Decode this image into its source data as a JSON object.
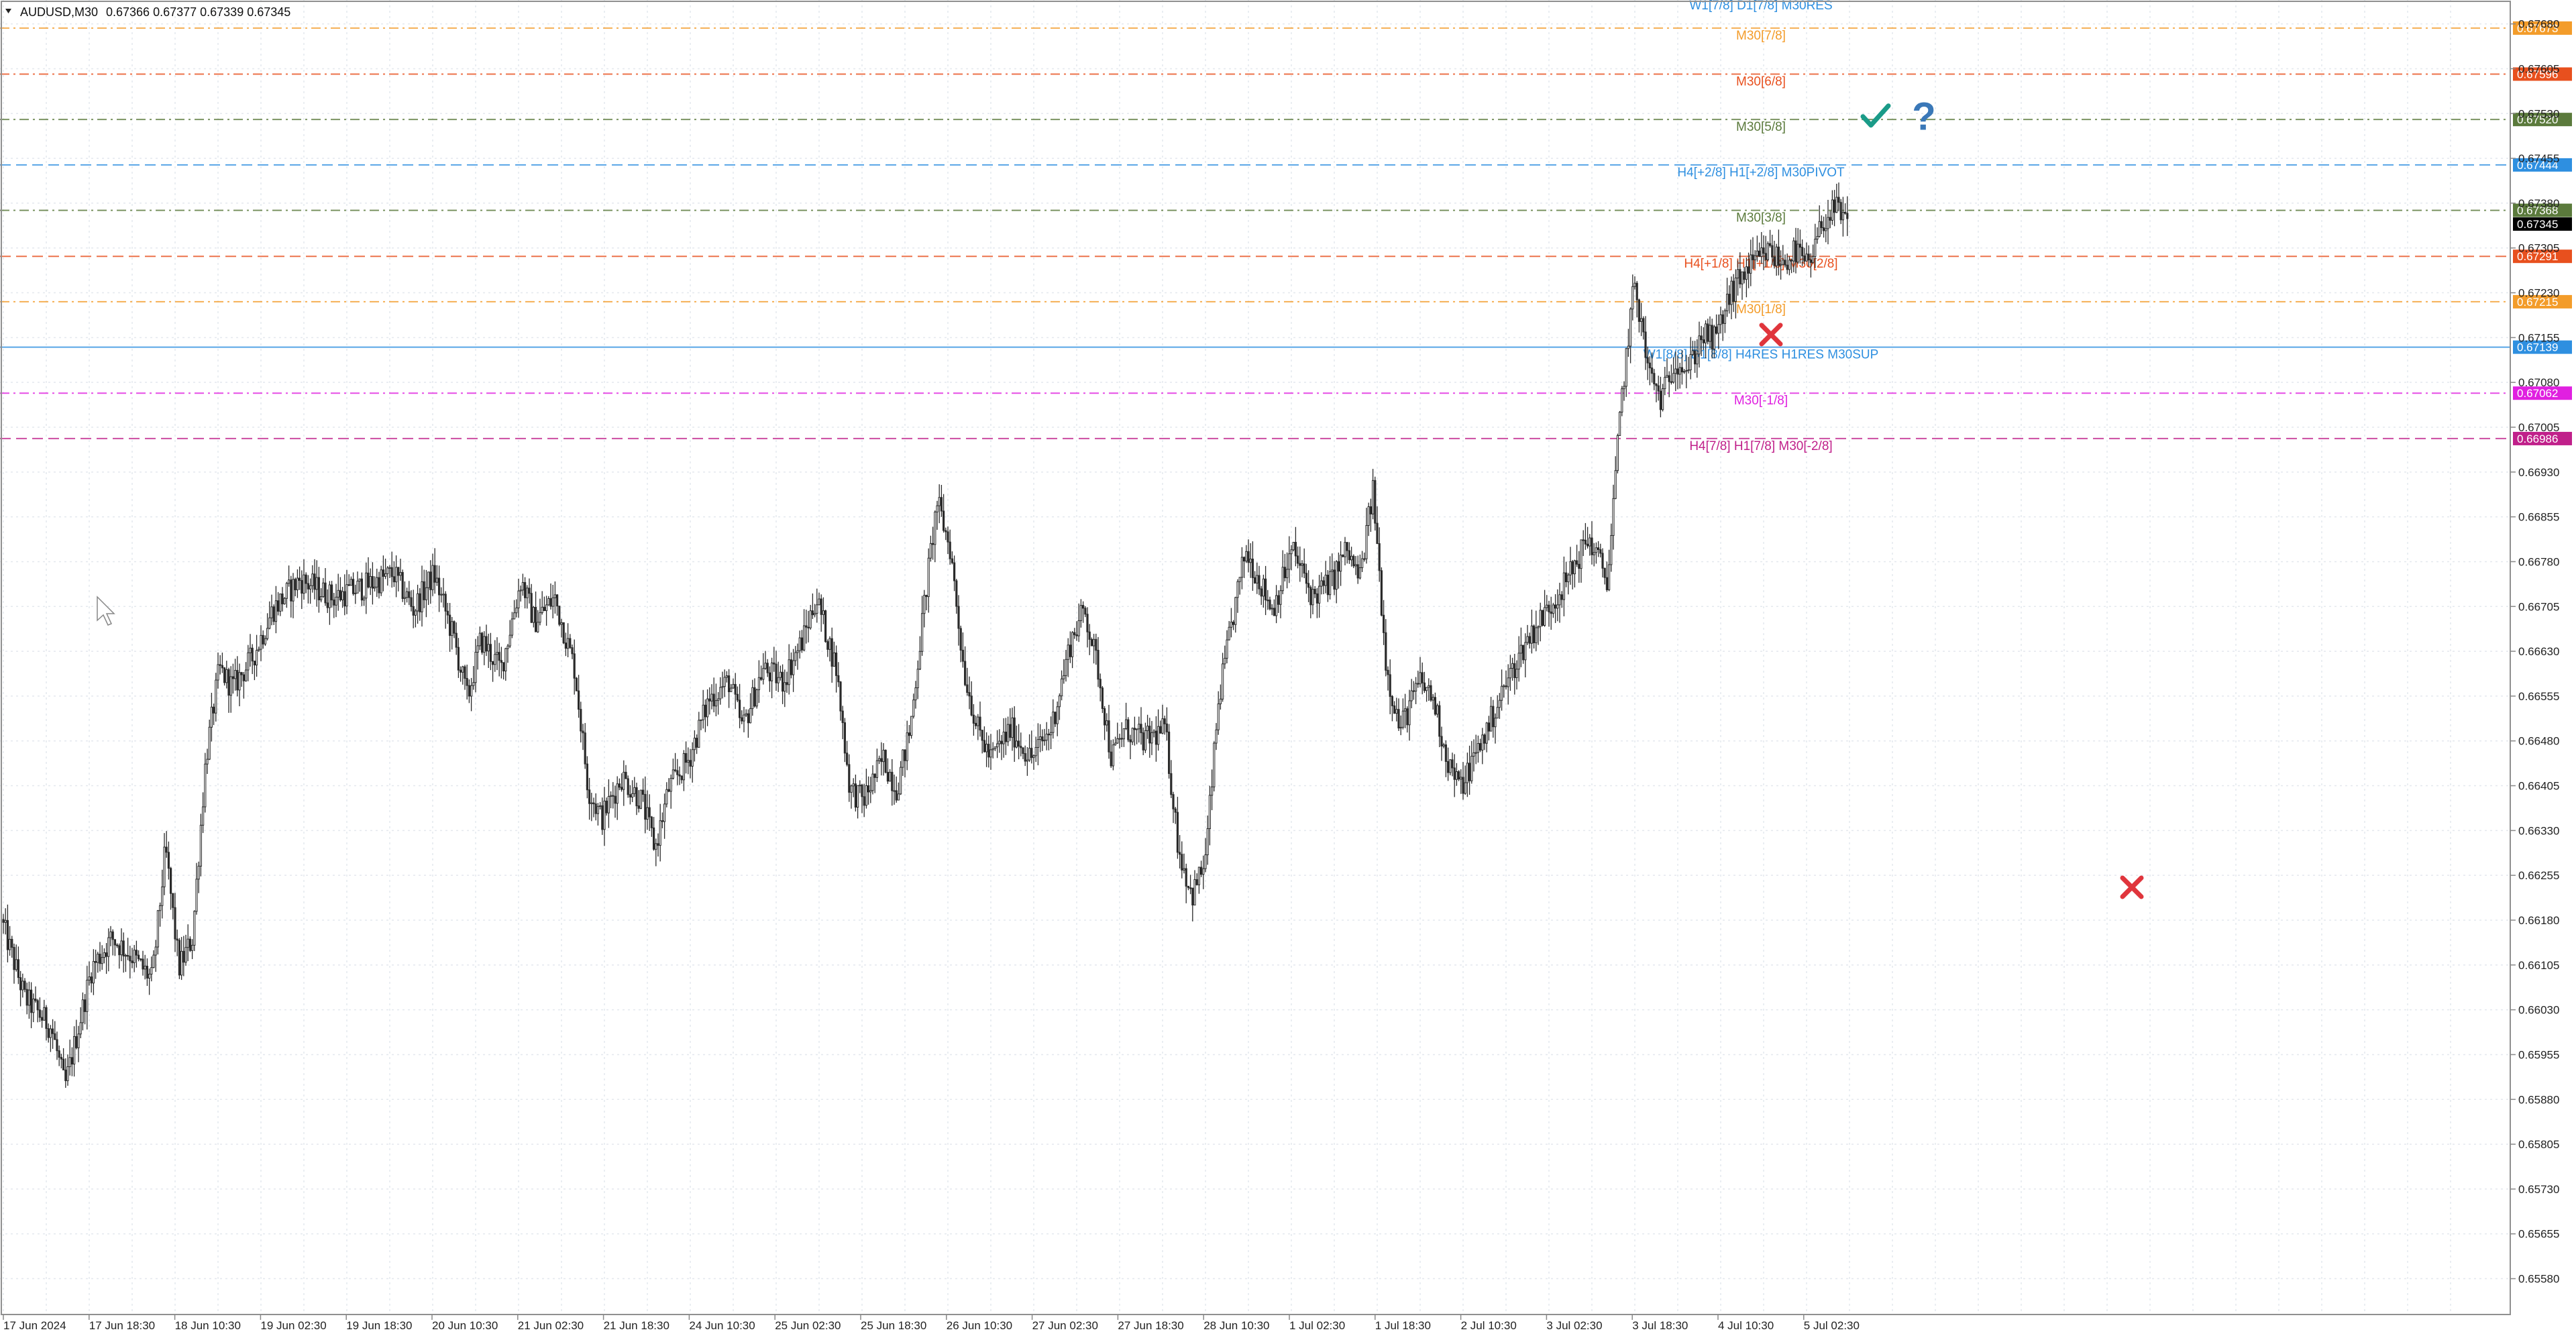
{
  "header": {
    "symbol": "AUDUSD,M30",
    "quote": "0.67366 0.67377 0.67339 0.67345"
  },
  "chart_data": {
    "type": "candlestick",
    "symbol": "AUDUSD",
    "timeframe": "M30",
    "grid": true,
    "ylim": [
      0.6552,
      0.6772
    ],
    "y_ticks": [
      "0.67680",
      "0.67605",
      "0.67530",
      "0.67455",
      "0.67380",
      "0.67305",
      "0.67230",
      "0.67155",
      "0.67080",
      "0.67005",
      "0.66930",
      "0.66855",
      "0.66780",
      "0.66705",
      "0.66630",
      "0.66555",
      "0.66480",
      "0.66405",
      "0.66330",
      "0.66255",
      "0.66180",
      "0.66105",
      "0.66030",
      "0.65955",
      "0.65880",
      "0.65805",
      "0.65730",
      "0.65655",
      "0.65580"
    ],
    "x_labels": [
      "17 Jun 2024",
      "17 Jun 18:30",
      "18 Jun 10:30",
      "19 Jun 02:30",
      "19 Jun 18:30",
      "20 Jun 10:30",
      "21 Jun 02:30",
      "21 Jun 18:30",
      "24 Jun 10:30",
      "25 Jun 02:30",
      "25 Jun 18:30",
      "26 Jun 10:30",
      "27 Jun 02:30",
      "27 Jun 18:30",
      "28 Jun 10:30",
      "1 Jul 02:30",
      "1 Jul 18:30",
      "2 Jul 10:30",
      "3 Jul 02:30",
      "3 Jul 18:30",
      "4 Jul 10:30",
      "5 Jul 02:30"
    ],
    "levels": [
      {
        "price": 0.67673,
        "label": "M30[7/8]",
        "tag": "0.67673",
        "color": "#f39c2a",
        "style": "dashdot"
      },
      {
        "price": 0.67596,
        "label": "M30[6/8]",
        "tag": "0.67596",
        "color": "#e8501e",
        "style": "dashdot"
      },
      {
        "price": 0.6752,
        "label": "M30[5/8]",
        "tag": "0.67520",
        "color": "#5b7a3c",
        "style": "dashdot"
      },
      {
        "price": 0.67444,
        "label": "H4[+2/8] H1[+2/8] M30PIVOT",
        "tag": "0.67444",
        "color": "#2e8fe0",
        "style": "dashed"
      },
      {
        "price": 0.67368,
        "label": "M30[3/8]",
        "tag": "0.67368",
        "color": "#5b7a3c",
        "style": "dashdot"
      },
      {
        "price": 0.67291,
        "label": "H4[+1/8] H1[+1/8] M30[2/8]",
        "tag": "0.67291",
        "color": "#e8501e",
        "style": "dashed"
      },
      {
        "price": 0.67215,
        "label": "M30[1/8]",
        "tag": "0.67215",
        "color": "#f39c2a",
        "style": "dashdot"
      },
      {
        "price": 0.67139,
        "label": "W1[8/8] D1[8/8] H4RES H1RES M30SUP",
        "tag": "0.67139",
        "color": "#2e8fe0",
        "style": "solid"
      },
      {
        "price": 0.67062,
        "label": "M30[-1/8]",
        "tag": "0.67062",
        "color": "#e020e0",
        "style": "dashdot"
      },
      {
        "price": 0.66986,
        "label": "H4[7/8] H1[7/8] M30[-2/8]",
        "tag": "0.66986",
        "color": "#c0208a",
        "style": "dashed"
      }
    ],
    "top_label": {
      "label": "W1[7/8] D1[7/8] M30RES",
      "color": "#2e8fe0"
    },
    "current_price": {
      "tag": "0.67345",
      "price": 0.67345
    },
    "path": [
      [
        0,
        0.662
      ],
      [
        40,
        0.6605
      ],
      [
        80,
        0.66
      ],
      [
        100,
        0.659
      ],
      [
        140,
        0.661
      ],
      [
        170,
        0.6615
      ],
      [
        200,
        0.6612
      ],
      [
        230,
        0.6608
      ],
      [
        250,
        0.663
      ],
      [
        270,
        0.661
      ],
      [
        290,
        0.6615
      ],
      [
        310,
        0.6645
      ],
      [
        330,
        0.666
      ],
      [
        350,
        0.6657
      ],
      [
        380,
        0.6662
      ],
      [
        410,
        0.667
      ],
      [
        450,
        0.6675
      ],
      [
        500,
        0.6672
      ],
      [
        550,
        0.6674
      ],
      [
        590,
        0.6676
      ],
      [
        620,
        0.667
      ],
      [
        650,
        0.6676
      ],
      [
        680,
        0.6665
      ],
      [
        700,
        0.6655
      ],
      [
        720,
        0.6665
      ],
      [
        750,
        0.666
      ],
      [
        780,
        0.6675
      ],
      [
        800,
        0.6668
      ],
      [
        830,
        0.6672
      ],
      [
        860,
        0.666
      ],
      [
        880,
        0.664
      ],
      [
        900,
        0.6635
      ],
      [
        930,
        0.6642
      ],
      [
        960,
        0.6638
      ],
      [
        980,
        0.663
      ],
      [
        1000,
        0.664
      ],
      [
        1030,
        0.6645
      ],
      [
        1060,
        0.6655
      ],
      [
        1090,
        0.6658
      ],
      [
        1110,
        0.665
      ],
      [
        1140,
        0.666
      ],
      [
        1170,
        0.6658
      ],
      [
        1200,
        0.6665
      ],
      [
        1220,
        0.6672
      ],
      [
        1250,
        0.666
      ],
      [
        1270,
        0.664
      ],
      [
        1290,
        0.6638
      ],
      [
        1320,
        0.6645
      ],
      [
        1340,
        0.664
      ],
      [
        1360,
        0.665
      ],
      [
        1380,
        0.667
      ],
      [
        1400,
        0.6688
      ],
      [
        1420,
        0.668
      ],
      [
        1440,
        0.666
      ],
      [
        1460,
        0.665
      ],
      [
        1480,
        0.6645
      ],
      [
        1510,
        0.665
      ],
      [
        1540,
        0.6645
      ],
      [
        1570,
        0.665
      ],
      [
        1600,
        0.6665
      ],
      [
        1620,
        0.667
      ],
      [
        1640,
        0.666
      ],
      [
        1660,
        0.6645
      ],
      [
        1680,
        0.665
      ],
      [
        1710,
        0.6648
      ],
      [
        1740,
        0.665
      ],
      [
        1760,
        0.663
      ],
      [
        1780,
        0.6622
      ],
      [
        1800,
        0.6628
      ],
      [
        1820,
        0.6655
      ],
      [
        1840,
        0.6668
      ],
      [
        1860,
        0.668
      ],
      [
        1880,
        0.6675
      ],
      [
        1900,
        0.667
      ],
      [
        1930,
        0.668
      ],
      [
        1960,
        0.6672
      ],
      [
        1990,
        0.6675
      ],
      [
        2010,
        0.668
      ],
      [
        2030,
        0.6675
      ],
      [
        2050,
        0.669
      ],
      [
        2070,
        0.666
      ],
      [
        2090,
        0.665
      ],
      [
        2120,
        0.6658
      ],
      [
        2140,
        0.6655
      ],
      [
        2160,
        0.6645
      ],
      [
        2180,
        0.664
      ],
      [
        2200,
        0.6645
      ],
      [
        2220,
        0.665
      ],
      [
        2250,
        0.6658
      ],
      [
        2280,
        0.6665
      ],
      [
        2310,
        0.667
      ],
      [
        2340,
        0.6675
      ],
      [
        2370,
        0.6682
      ],
      [
        2400,
        0.6675
      ],
      [
        2420,
        0.6705
      ],
      [
        2440,
        0.6725
      ],
      [
        2460,
        0.671
      ],
      [
        2480,
        0.6705
      ],
      [
        2500,
        0.6712
      ],
      [
        2520,
        0.671
      ],
      [
        2540,
        0.6716
      ],
      [
        2560,
        0.6715
      ],
      [
        2580,
        0.6722
      ],
      [
        2600,
        0.6726
      ],
      [
        2620,
        0.6728
      ],
      [
        2640,
        0.673
      ],
      [
        2660,
        0.6728
      ],
      [
        2680,
        0.673
      ],
      [
        2700,
        0.6727
      ],
      [
        2720,
        0.6735
      ],
      [
        2740,
        0.6737
      ],
      [
        2755,
        0.67345
      ]
    ],
    "markers": [
      {
        "type": "check",
        "color": "#1a9b88",
        "price": 0.67525,
        "x": 2795
      },
      {
        "type": "question",
        "color": "#3a78b8",
        "price": 0.67525,
        "x": 2868
      },
      {
        "type": "cross",
        "color": "#e0353c",
        "price": 0.6716,
        "x": 2640
      },
      {
        "type": "cross",
        "color": "#e0353c",
        "price": 0.66235,
        "x": 3178
      }
    ]
  }
}
